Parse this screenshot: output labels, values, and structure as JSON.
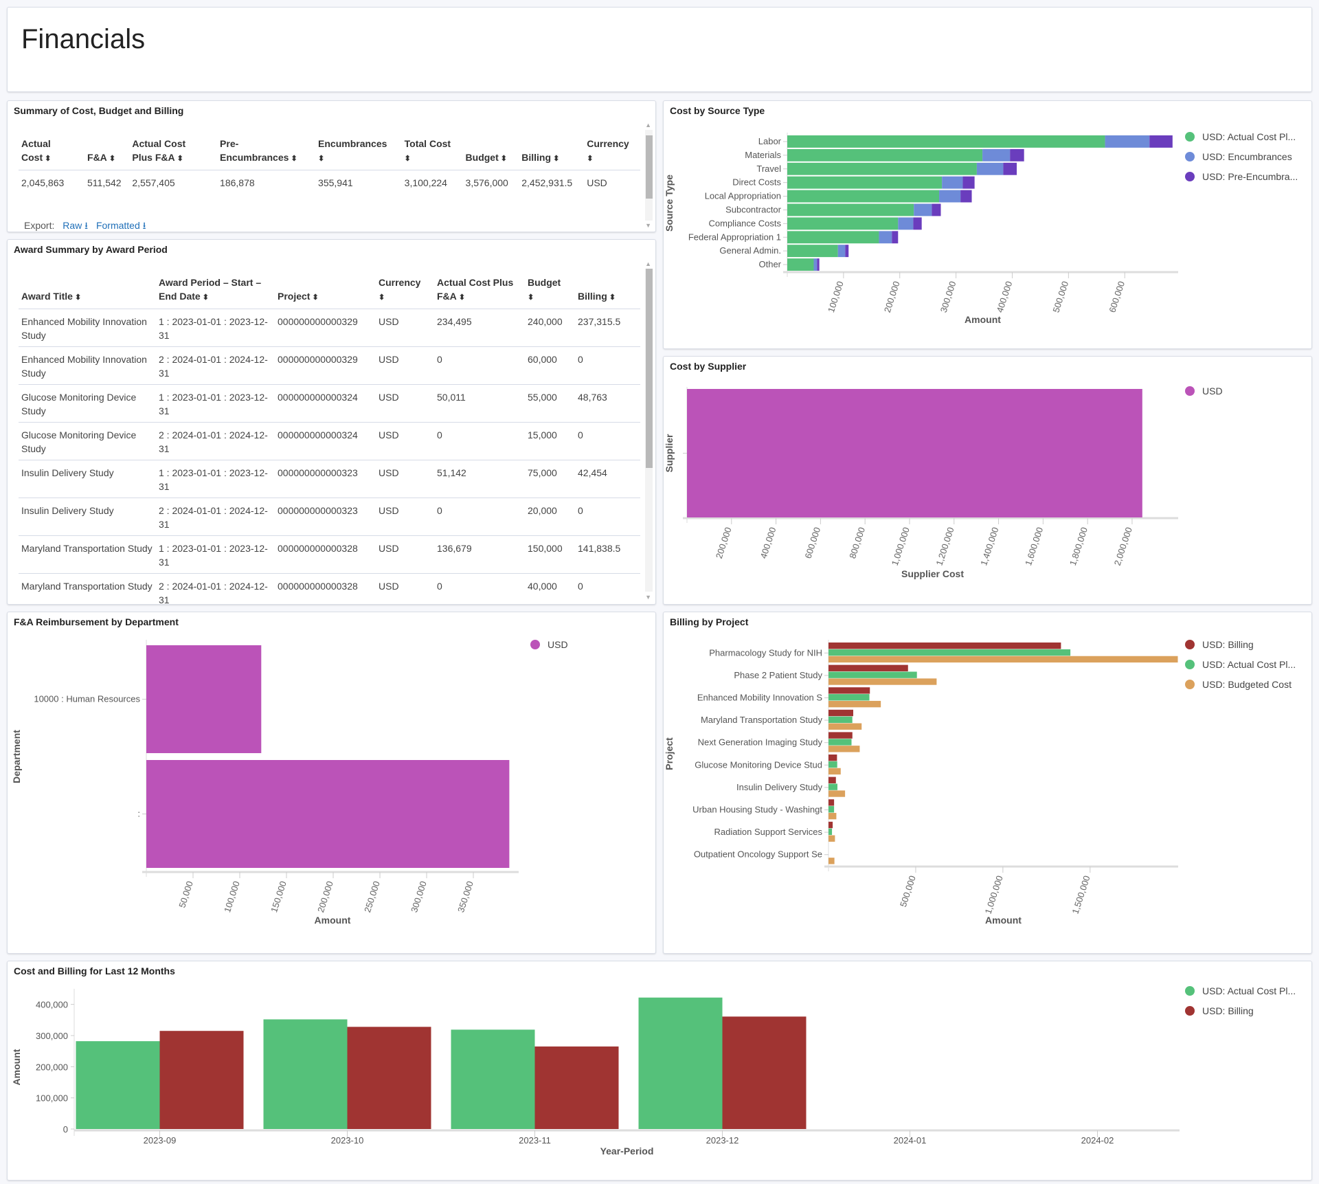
{
  "header": {
    "title": "Financials"
  },
  "summary": {
    "title": "Summary of Cost, Budget and Billing",
    "columns": [
      [
        "Actual",
        "Cost"
      ],
      [
        "",
        "F&A"
      ],
      [
        "Actual Cost",
        "Plus F&A"
      ],
      [
        "Pre-",
        "Encumbrances"
      ],
      [
        "Encumbrances",
        ""
      ],
      [
        "Total Cost",
        ""
      ],
      [
        "",
        "Budget"
      ],
      [
        "",
        "Billing"
      ],
      [
        "Currency",
        ""
      ]
    ],
    "row": [
      "2,045,863",
      "511,542",
      "2,557,405",
      "186,878",
      "355,941",
      "3,100,224",
      "3,576,000",
      "2,452,931.5",
      "USD"
    ],
    "export_label": "Export:",
    "raw_label": "Raw",
    "formatted_label": "Formatted"
  },
  "award": {
    "title": "Award Summary by Award Period",
    "columns": [
      [
        "",
        "Award Title"
      ],
      [
        "Award Period – Start –",
        "End Date"
      ],
      [
        "",
        "Project"
      ],
      [
        "Currency",
        ""
      ],
      [
        "Actual Cost Plus",
        "F&A"
      ],
      [
        "Budget",
        ""
      ],
      [
        "",
        "Billing"
      ]
    ],
    "rows": [
      [
        "Enhanced Mobility Innovation Study",
        "1 : 2023-01-01 : 2023-12-31",
        "000000000000329",
        "USD",
        "234,495",
        "240,000",
        "237,315.5"
      ],
      [
        "Enhanced Mobility Innovation Study",
        "2 : 2024-01-01 : 2024-12-31",
        "000000000000329",
        "USD",
        "0",
        "60,000",
        "0"
      ],
      [
        "Glucose Monitoring Device Study",
        "1 : 2023-01-01 : 2023-12-31",
        "000000000000324",
        "USD",
        "50,011",
        "55,000",
        "48,763"
      ],
      [
        "Glucose Monitoring Device Study",
        "2 : 2024-01-01 : 2024-12-31",
        "000000000000324",
        "USD",
        "0",
        "15,000",
        "0"
      ],
      [
        "Insulin Delivery Study",
        "1 : 2023-01-01 : 2023-12-31",
        "000000000000323",
        "USD",
        "51,142",
        "75,000",
        "42,454"
      ],
      [
        "Insulin Delivery Study",
        "2 : 2024-01-01 : 2024-12-31",
        "000000000000323",
        "USD",
        "0",
        "20,000",
        "0"
      ],
      [
        "Maryland Transportation Study",
        "1 : 2023-01-01 : 2023-12-31",
        "000000000000328",
        "USD",
        "136,679",
        "150,000",
        "141,838.5"
      ],
      [
        "Maryland Transportation Study",
        "2 : 2024-01-01 : 2024-12-31",
        "000000000000328",
        "USD",
        "0",
        "40,000",
        "0"
      ]
    ]
  },
  "chart_data": [
    {
      "id": "source",
      "title": "Cost by Source Type",
      "type": "bar",
      "orientation": "horizontal",
      "stacked": true,
      "ylabel": "Source Type",
      "xlabel": "Amount",
      "xlim": [
        0,
        695000
      ],
      "xticks": [
        100000,
        200000,
        300000,
        400000,
        500000,
        600000
      ],
      "tick_labels": [
        "100,000",
        "200,000",
        "300,000",
        "400,000",
        "500,000",
        "600,000"
      ],
      "categories": [
        "Labor",
        "Materials",
        "Travel",
        "Direct Costs",
        "Local Appropriation",
        "Subcontractor",
        "Compliance Costs",
        "Federal Appropriation 1",
        "General Admin.",
        "Other"
      ],
      "series": [
        {
          "name": "USD: Actual Cost Pl...",
          "color": "#55c17a",
          "values": [
            565000,
            347000,
            337000,
            275000,
            270000,
            225000,
            197000,
            163000,
            90000,
            47000
          ]
        },
        {
          "name": "USD: Encumbrances",
          "color": "#6e8bd8",
          "values": [
            79000,
            49000,
            47000,
            37000,
            38000,
            32000,
            27000,
            23000,
            13000,
            6000
          ]
        },
        {
          "name": "USD: Pre-Encumbra...",
          "color": "#6a3dbd",
          "values": [
            41000,
            25000,
            24000,
            21000,
            20000,
            16000,
            15000,
            11000,
            6000,
            4000
          ]
        }
      ],
      "legend": "right"
    },
    {
      "id": "supplier",
      "title": "Cost by Supplier",
      "type": "bar",
      "orientation": "horizontal",
      "ylabel": "Supplier",
      "xlabel": "Supplier Cost",
      "xlim": [
        0,
        2207000
      ],
      "xticks": [
        200000,
        400000,
        600000,
        800000,
        1000000,
        1200000,
        1400000,
        1600000,
        1800000,
        2000000
      ],
      "tick_labels": [
        "200,000",
        "400,000",
        "600,000",
        "800,000",
        "1,000,000",
        "1,200,000",
        "1,400,000",
        "1,600,000",
        "1,800,000",
        "2,000,000"
      ],
      "categories": [
        ""
      ],
      "series": [
        {
          "name": "USD",
          "color": "#bb53b8",
          "values": [
            2045863
          ]
        }
      ],
      "legend": "right"
    },
    {
      "id": "fa",
      "title": "F&A Reimbursement by Department",
      "type": "bar",
      "orientation": "horizontal",
      "ylabel": "Department",
      "xlabel": "Amount",
      "xlim": [
        0,
        398500
      ],
      "xticks": [
        50000,
        100000,
        150000,
        200000,
        250000,
        300000,
        350000
      ],
      "tick_labels": [
        "50,000",
        "100,000",
        "150,000",
        "200,000",
        "250,000",
        "300,000",
        "350,000"
      ],
      "categories": [
        "10000 : Human Resources",
        ":"
      ],
      "series": [
        {
          "name": "USD",
          "color": "#bb53b8",
          "values": [
            123000,
            388500
          ]
        }
      ],
      "legend": "right"
    },
    {
      "id": "billing",
      "title": "Billing by Project",
      "type": "bar",
      "orientation": "horizontal",
      "grouped": true,
      "ylabel": "Project",
      "xlabel": "Amount",
      "xlim": [
        0,
        2005000
      ],
      "xticks": [
        500000,
        1000000,
        1500000
      ],
      "tick_labels": [
        "500,000",
        "1,000,000",
        "1,500,000"
      ],
      "categories": [
        "Pharmacology Study for NIH",
        "Phase 2 Patient Study",
        "Enhanced Mobility Innovation S",
        "Maryland Transportation Study",
        "Next Generation Imaging Study",
        "Glucose Monitoring Device Stud",
        "Insulin Delivery Study",
        "Urban Housing Study - Washingt",
        "Radiation Support Services",
        "Outpatient Oncology Support Se"
      ],
      "series": [
        {
          "name": "USD: Billing",
          "color": "#a03432",
          "values": [
            1333000,
            456000,
            237315.5,
            141838.5,
            137000,
            48763,
            42454,
            32000,
            24000,
            0
          ]
        },
        {
          "name": "USD: Actual Cost Pl...",
          "color": "#55c17a",
          "values": [
            1387000,
            507000,
            234495,
            136679,
            132000,
            50011,
            51142,
            32000,
            20000,
            0
          ]
        },
        {
          "name": "USD: Budgeted Cost",
          "color": "#dba15c",
          "values": [
            2003000,
            620000,
            300000,
            190000,
            179000,
            70000,
            95000,
            45000,
            37000,
            34000
          ]
        }
      ],
      "legend": "right"
    },
    {
      "id": "months",
      "title": "Cost and Billing for Last 12 Months",
      "type": "bar",
      "orientation": "vertical",
      "grouped": true,
      "xlabel": "Year-Period",
      "ylabel": "Amount",
      "ylim": [
        0,
        450000
      ],
      "yticks": [
        0,
        100000,
        200000,
        300000,
        400000
      ],
      "ytick_labels": [
        "0",
        "100,000",
        "200,000",
        "300,000",
        "400,000"
      ],
      "categories": [
        "2023-09",
        "2023-10",
        "2023-11",
        "2023-12",
        "2024-01",
        "2024-02"
      ],
      "series": [
        {
          "name": "USD: Actual Cost Pl...",
          "color": "#55c17a",
          "values": [
            282000,
            352000,
            319000,
            422000,
            null,
            null
          ]
        },
        {
          "name": "USD: Billing",
          "color": "#a03432",
          "values": [
            315000,
            328000,
            265000,
            361000,
            null,
            null
          ]
        }
      ],
      "legend": "right"
    }
  ]
}
